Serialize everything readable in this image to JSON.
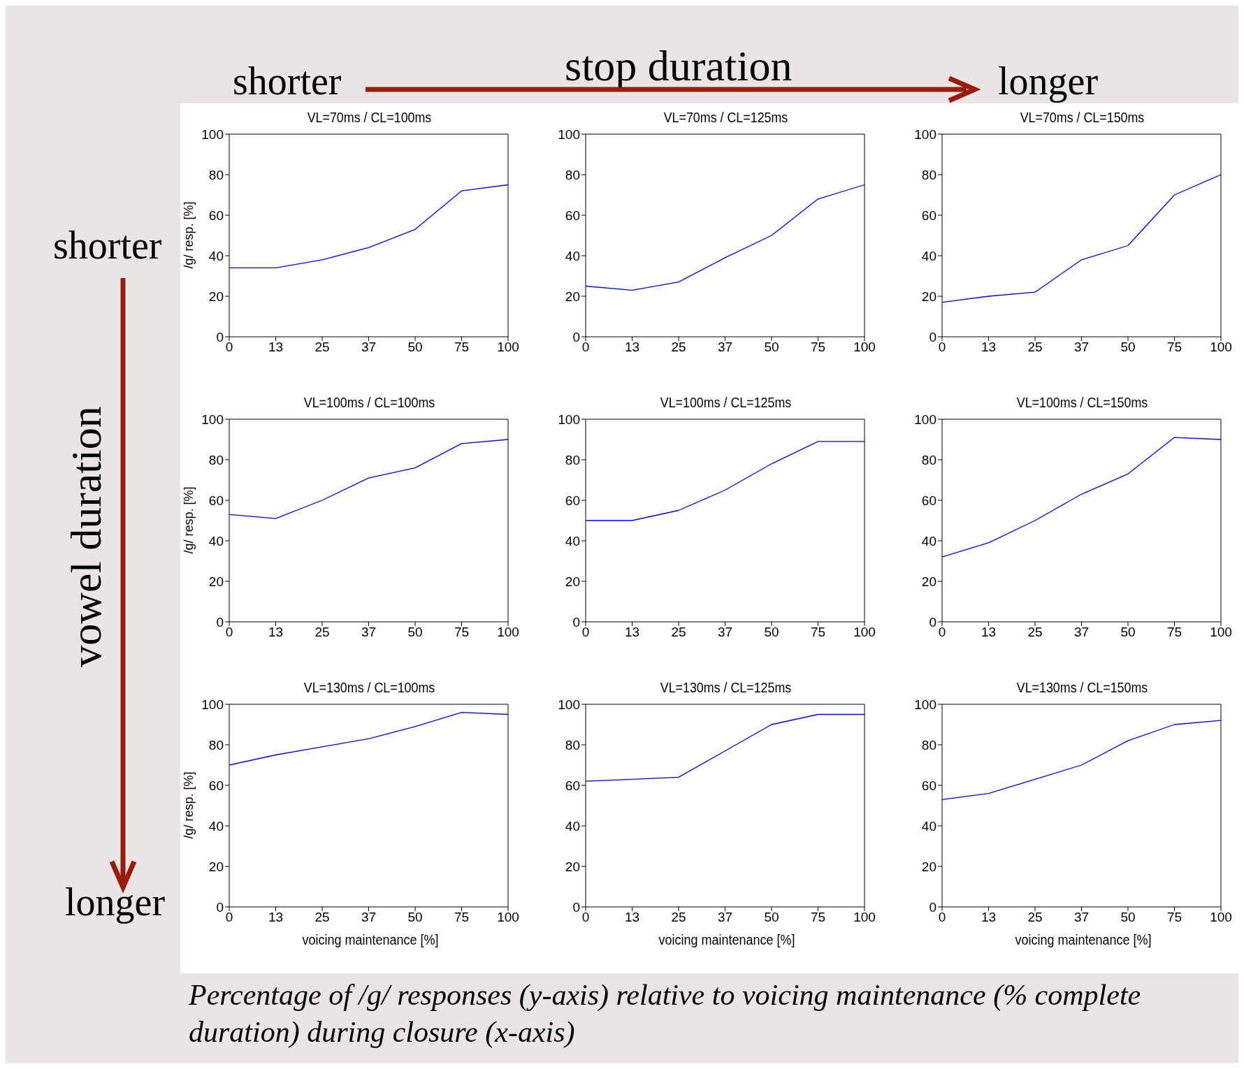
{
  "chart_data": [
    {
      "type": "line",
      "title": "VL=70ms / CL=100ms",
      "ylabel": "/g/ resp. [%]",
      "categories": [
        "0",
        "13",
        "25",
        "37",
        "50",
        "75",
        "100"
      ],
      "values": [
        34,
        34,
        38,
        44,
        53,
        72,
        75
      ],
      "color": "#0000ff",
      "ylim": [
        0,
        100
      ],
      "yticks": [
        0,
        20,
        40,
        60,
        80,
        100
      ],
      "grid": false,
      "legend": false,
      "marker": "none",
      "line_style": "solid",
      "annotations": [
        "shorter",
        "stop duration",
        "longer",
        "shorter",
        "vowel duration",
        "longer",
        "Percentage of /g/ responses (y-axis) relative to voicing maintenance (% complete duration) during closure (x-axis)"
      ]
    },
    {
      "type": "line",
      "title": "VL=70ms / CL=125ms",
      "categories": [
        "0",
        "13",
        "25",
        "37",
        "50",
        "75",
        "100"
      ],
      "values": [
        25,
        23,
        27,
        39,
        50,
        68,
        75
      ],
      "color": "#0000ff",
      "ylim": [
        0,
        100
      ],
      "yticks": [
        0,
        20,
        40,
        60,
        80,
        100
      ],
      "grid": false,
      "legend": false,
      "marker": "none",
      "line_style": "solid"
    },
    {
      "type": "line",
      "title": "VL=70ms / CL=150ms",
      "categories": [
        "0",
        "13",
        "25",
        "37",
        "50",
        "75",
        "100"
      ],
      "values": [
        17,
        20,
        22,
        38,
        45,
        70,
        80
      ],
      "color": "#0000ff",
      "ylim": [
        0,
        100
      ],
      "yticks": [
        0,
        20,
        40,
        60,
        80,
        100
      ],
      "grid": false,
      "legend": false,
      "marker": "none",
      "line_style": "solid"
    },
    {
      "type": "line",
      "title": "VL=100ms / CL=100ms",
      "ylabel": "/g/ resp. [%]",
      "categories": [
        "0",
        "13",
        "25",
        "37",
        "50",
        "75",
        "100"
      ],
      "values": [
        53,
        51,
        60,
        71,
        76,
        88,
        90
      ],
      "color": "#0000ff",
      "ylim": [
        0,
        100
      ],
      "yticks": [
        0,
        20,
        40,
        60,
        80,
        100
      ],
      "grid": false,
      "legend": false,
      "marker": "none",
      "line_style": "solid"
    },
    {
      "type": "line",
      "title": "VL=100ms / CL=125ms",
      "categories": [
        "0",
        "13",
        "25",
        "37",
        "50",
        "75",
        "100"
      ],
      "values": [
        50,
        50,
        55,
        65,
        78,
        89,
        89
      ],
      "color": "#0000ff",
      "ylim": [
        0,
        100
      ],
      "yticks": [
        0,
        20,
        40,
        60,
        80,
        100
      ],
      "grid": false,
      "legend": false,
      "marker": "none",
      "line_style": "solid"
    },
    {
      "type": "line",
      "title": "VL=100ms / CL=150ms",
      "categories": [
        "0",
        "13",
        "25",
        "37",
        "50",
        "75",
        "100"
      ],
      "values": [
        32,
        39,
        50,
        63,
        73,
        91,
        90
      ],
      "color": "#0000ff",
      "ylim": [
        0,
        100
      ],
      "yticks": [
        0,
        20,
        40,
        60,
        80,
        100
      ],
      "grid": false,
      "legend": false,
      "marker": "none",
      "line_style": "solid"
    },
    {
      "type": "line",
      "title": "VL=130ms / CL=100ms",
      "ylabel": "/g/ resp. [%]",
      "xlabel": "voicing maintenance [%]",
      "categories": [
        "0",
        "13",
        "25",
        "37",
        "50",
        "75",
        "100"
      ],
      "values": [
        70,
        75,
        79,
        83,
        89,
        96,
        95
      ],
      "color": "#0000ff",
      "ylim": [
        0,
        100
      ],
      "yticks": [
        0,
        20,
        40,
        60,
        80,
        100
      ],
      "grid": false,
      "legend": false,
      "marker": "none",
      "line_style": "solid"
    },
    {
      "type": "line",
      "title": "VL=130ms / CL=125ms",
      "xlabel": "voicing maintenance [%]",
      "categories": [
        "0",
        "13",
        "25",
        "37",
        "50",
        "75",
        "100"
      ],
      "values": [
        62,
        63,
        64,
        77,
        90,
        95,
        95
      ],
      "color": "#0000ff",
      "ylim": [
        0,
        100
      ],
      "yticks": [
        0,
        20,
        40,
        60,
        80,
        100
      ],
      "grid": false,
      "legend": false,
      "marker": "none",
      "line_style": "solid"
    },
    {
      "type": "line",
      "title": "VL=130ms / CL=150ms",
      "xlabel": "voicing maintenance [%]",
      "categories": [
        "0",
        "13",
        "25",
        "37",
        "50",
        "75",
        "100"
      ],
      "values": [
        53,
        56,
        63,
        70,
        82,
        90,
        92
      ],
      "color": "#0000ff",
      "ylim": [
        0,
        100
      ],
      "yticks": [
        0,
        20,
        40,
        60,
        80,
        100
      ],
      "grid": false,
      "legend": false,
      "marker": "none",
      "line_style": "solid"
    }
  ]
}
